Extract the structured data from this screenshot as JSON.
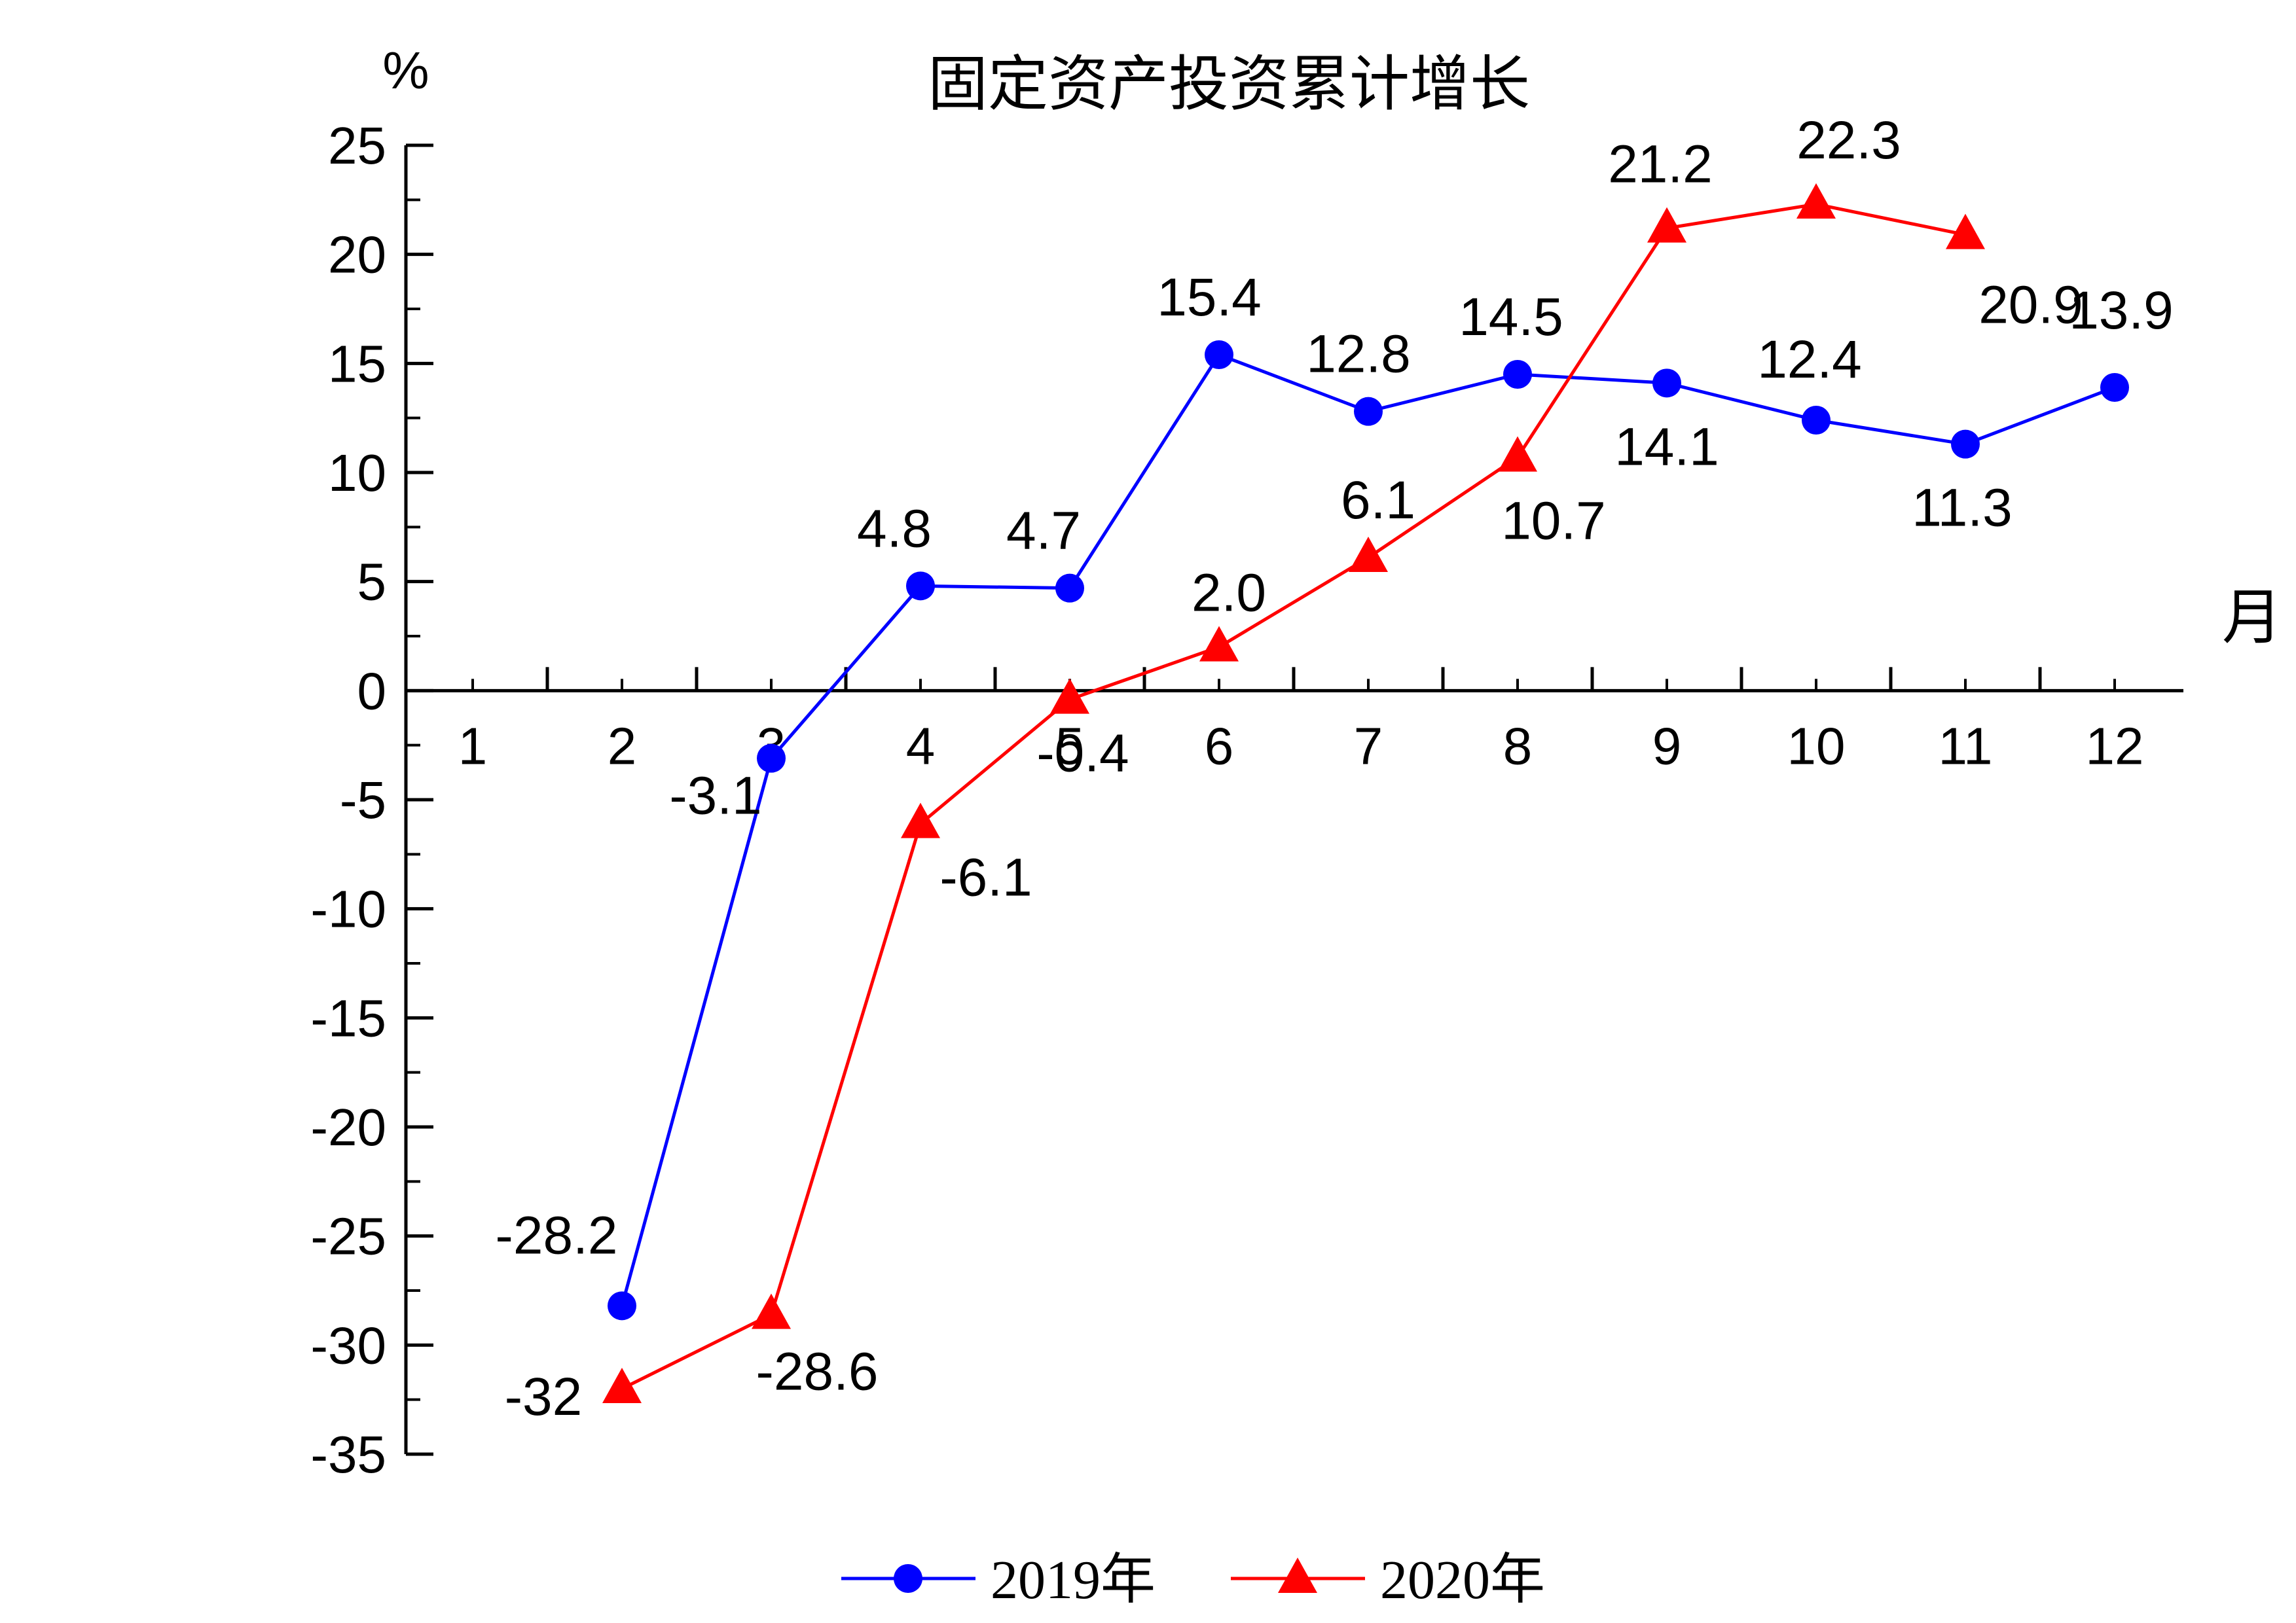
{
  "chart_data": {
    "type": "line",
    "title": "固定资产投资累计增长",
    "ylabel": "%",
    "xlabel": "月",
    "ylim": [
      -35,
      25
    ],
    "yticks": [
      25,
      20,
      15,
      10,
      5,
      0,
      -5,
      -10,
      -15,
      -20,
      -25,
      -30,
      -35
    ],
    "categories": [
      "1",
      "2",
      "3",
      "4",
      "5",
      "6",
      "7",
      "8",
      "9",
      "10",
      "11",
      "12"
    ],
    "grid": false,
    "legend_position": "bottom",
    "series": [
      {
        "name": "2019年",
        "color": "#0000ff",
        "marker": "circle",
        "points": [
          {
            "x": 2,
            "y": -28.2,
            "label": "-28.2"
          },
          {
            "x": 3,
            "y": -3.1,
            "label": "-3.1"
          },
          {
            "x": 4,
            "y": 4.8,
            "label": "4.8"
          },
          {
            "x": 5,
            "y": 4.7,
            "label": "4.7"
          },
          {
            "x": 6,
            "y": 15.4,
            "label": "15.4"
          },
          {
            "x": 7,
            "y": 12.8,
            "label": "12.8"
          },
          {
            "x": 8,
            "y": 14.5,
            "label": "14.5"
          },
          {
            "x": 9,
            "y": 14.1,
            "label": "14.1"
          },
          {
            "x": 10,
            "y": 12.4,
            "label": "12.4"
          },
          {
            "x": 11,
            "y": 11.3,
            "label": "11.3"
          },
          {
            "x": 12,
            "y": 13.9,
            "label": "13.9"
          }
        ]
      },
      {
        "name": "2020年",
        "color": "#ff0000",
        "marker": "triangle",
        "points": [
          {
            "x": 2,
            "y": -32,
            "label": "-32"
          },
          {
            "x": 3,
            "y": -28.6,
            "label": "-28.6"
          },
          {
            "x": 4,
            "y": -6.1,
            "label": "-6.1"
          },
          {
            "x": 5,
            "y": -0.4,
            "label": "-0.4"
          },
          {
            "x": 6,
            "y": 2.0,
            "label": "2.0"
          },
          {
            "x": 7,
            "y": 6.1,
            "label": "6.1"
          },
          {
            "x": 8,
            "y": 10.7,
            "label": "10.7"
          },
          {
            "x": 9,
            "y": 21.2,
            "label": "21.2"
          },
          {
            "x": 10,
            "y": 22.3,
            "label": "22.3"
          },
          {
            "x": 11,
            "y": 20.9,
            "label": "20.9"
          }
        ]
      }
    ]
  }
}
